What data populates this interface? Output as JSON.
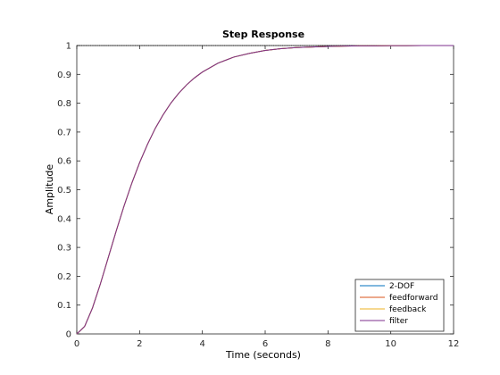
{
  "chart_data": {
    "type": "line",
    "title": "Step Response",
    "xlabel": "Time (seconds)",
    "ylabel": "Amplitude",
    "xlim": [
      0,
      12
    ],
    "ylim": [
      0,
      1
    ],
    "x_ticks": [
      0,
      2,
      4,
      6,
      8,
      10,
      12
    ],
    "y_ticks": [
      0,
      0.1,
      0.2,
      0.3,
      0.4,
      0.5,
      0.6,
      0.7,
      0.8,
      0.9,
      1
    ],
    "grid": false,
    "legend_position": "bottom-right",
    "reference_line": {
      "y": 1,
      "style": "dotted",
      "color": "#000000"
    },
    "x": [
      0,
      0.25,
      0.5,
      0.75,
      1,
      1.25,
      1.5,
      1.75,
      2,
      2.25,
      2.5,
      2.75,
      3,
      3.25,
      3.5,
      3.75,
      4,
      4.5,
      5,
      5.5,
      6,
      6.5,
      7,
      7.5,
      8,
      8.5,
      9,
      9.5,
      10,
      10.5,
      11,
      11.5,
      12
    ],
    "series": [
      {
        "name": "2-DOF",
        "color": "#0072BD",
        "values": [
          0,
          0.026,
          0.09,
          0.173,
          0.264,
          0.355,
          0.442,
          0.522,
          0.594,
          0.657,
          0.713,
          0.76,
          0.801,
          0.835,
          0.864,
          0.888,
          0.908,
          0.939,
          0.96,
          0.973,
          0.983,
          0.989,
          0.993,
          0.995,
          0.997,
          0.998,
          0.999,
          0.999,
          0.9995,
          0.9997,
          0.9998,
          0.9999,
          0.99995
        ]
      },
      {
        "name": "feedforward",
        "color": "#D95319",
        "values": [
          0,
          0.026,
          0.09,
          0.173,
          0.264,
          0.355,
          0.442,
          0.522,
          0.594,
          0.657,
          0.713,
          0.76,
          0.801,
          0.835,
          0.864,
          0.888,
          0.908,
          0.939,
          0.96,
          0.973,
          0.983,
          0.989,
          0.993,
          0.995,
          0.997,
          0.998,
          0.999,
          0.999,
          0.9995,
          0.9997,
          0.9998,
          0.9999,
          0.99995
        ]
      },
      {
        "name": "feedback",
        "color": "#EDB120",
        "values": [
          0,
          0.026,
          0.09,
          0.173,
          0.264,
          0.355,
          0.442,
          0.522,
          0.594,
          0.657,
          0.713,
          0.76,
          0.801,
          0.835,
          0.864,
          0.888,
          0.908,
          0.939,
          0.96,
          0.973,
          0.983,
          0.989,
          0.993,
          0.995,
          0.997,
          0.998,
          0.999,
          0.999,
          0.9995,
          0.9997,
          0.9998,
          0.9999,
          0.99995
        ]
      },
      {
        "name": "filter",
        "color": "#7E2F8E",
        "values": [
          0,
          0.026,
          0.09,
          0.173,
          0.264,
          0.355,
          0.442,
          0.522,
          0.594,
          0.657,
          0.713,
          0.76,
          0.801,
          0.835,
          0.864,
          0.888,
          0.908,
          0.939,
          0.96,
          0.973,
          0.983,
          0.989,
          0.993,
          0.995,
          0.997,
          0.998,
          0.999,
          0.999,
          0.9995,
          0.9997,
          0.9998,
          0.9999,
          0.99995
        ]
      }
    ]
  }
}
